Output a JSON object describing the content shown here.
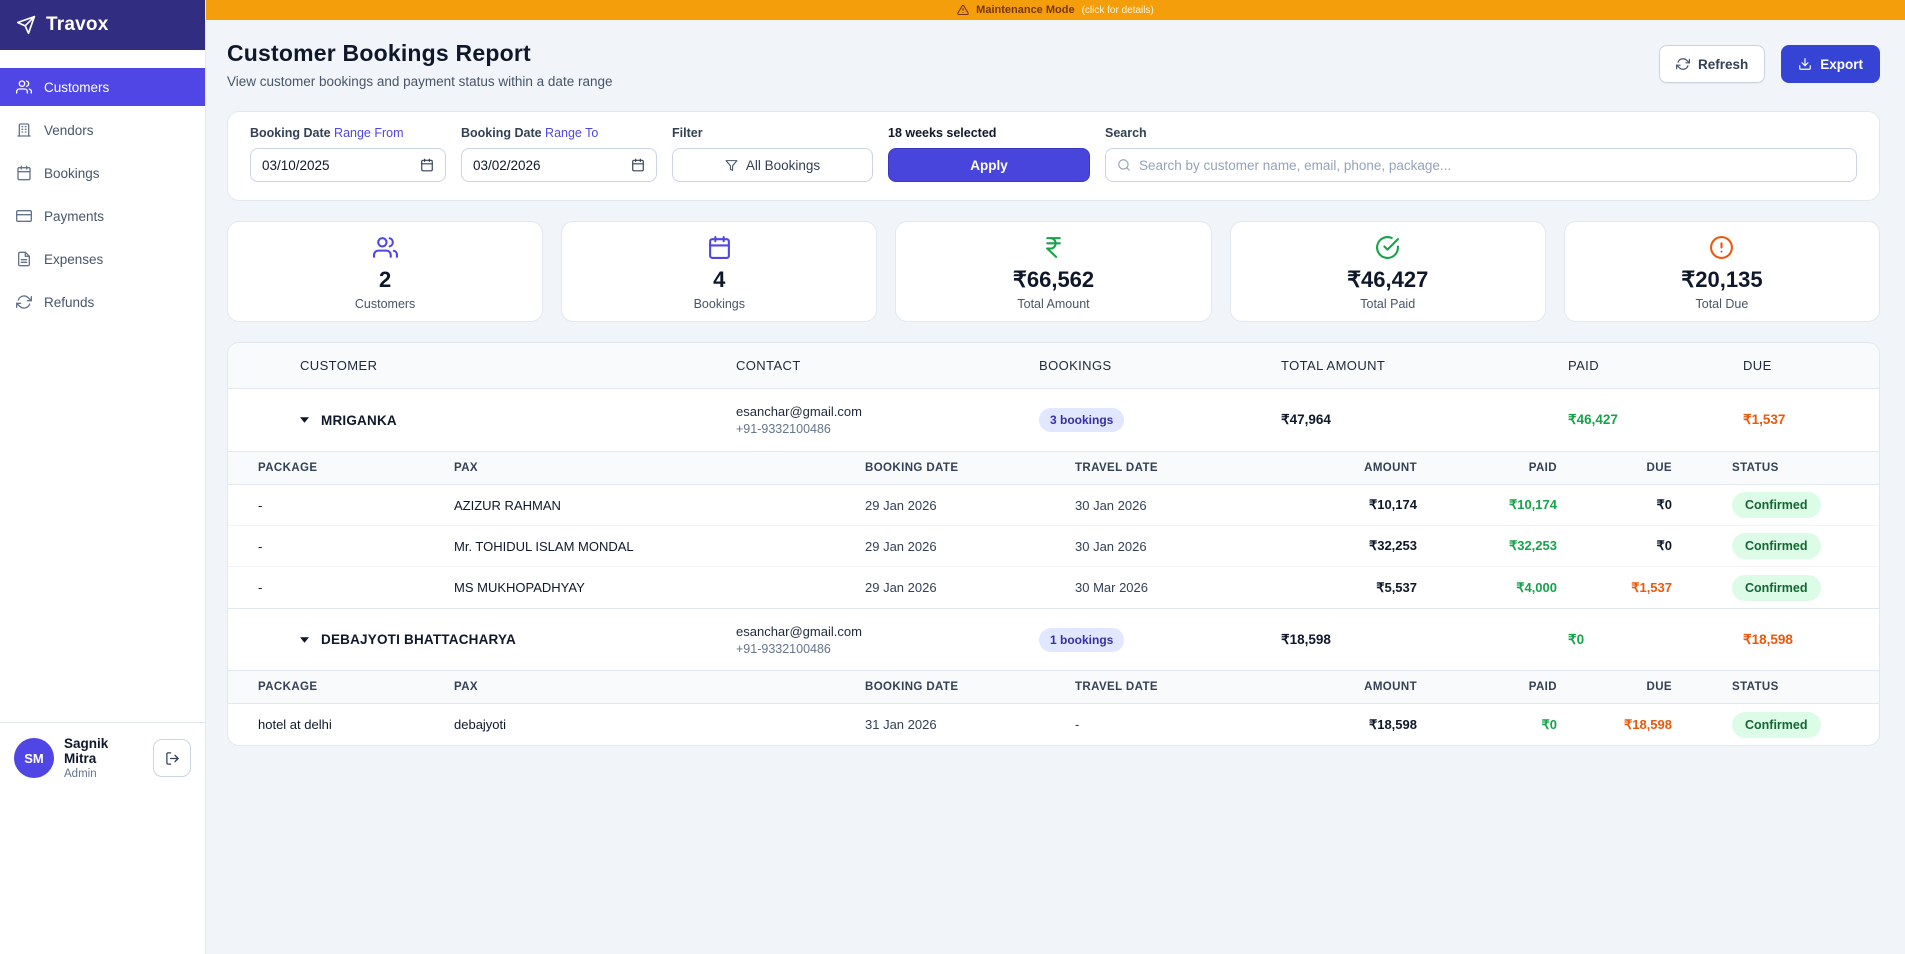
{
  "colors": {
    "primary": "#4F46E5",
    "sidebar_header": "#312E81",
    "banner": "#F59E0B",
    "apply_button": "#4845DC",
    "export_button": "#3544D4",
    "paid_green": "#16A34A",
    "due_orange": "#EA580C",
    "bookings_badge_bg": "#E0E7FF",
    "confirmed_badge_bg": "#DCFCE7",
    "confirmed_badge_text": "#166534"
  },
  "banner": {
    "message": "Maintenance Mode",
    "detail": "(click for details)"
  },
  "sidebar": {
    "brand": "Travox",
    "items": [
      {
        "label": "Customers",
        "icon": "users-icon",
        "active": true
      },
      {
        "label": "Vendors",
        "icon": "building-icon",
        "active": false
      },
      {
        "label": "Bookings",
        "icon": "calendar-icon",
        "active": false
      },
      {
        "label": "Payments",
        "icon": "credit-card-icon",
        "active": false
      },
      {
        "label": "Expenses",
        "icon": "receipt-icon",
        "active": false
      },
      {
        "label": "Refunds",
        "icon": "refresh-icon",
        "active": false
      }
    ],
    "user": {
      "initials": "SM",
      "name": "Sagnik Mitra",
      "role": "Admin"
    }
  },
  "page": {
    "title": "Customer Bookings Report",
    "subtitle": "View customer bookings and payment status within a date range",
    "refresh": "Refresh",
    "export": "Export"
  },
  "filters": {
    "from": {
      "label": "Booking Date",
      "sublabel": "Range From",
      "value": "03/10/2025"
    },
    "to": {
      "label": "Booking Date",
      "sublabel": "Range To",
      "value": "03/02/2026"
    },
    "filter": {
      "label": "Filter",
      "value": "All Bookings"
    },
    "apply": {
      "label": "18 weeks selected",
      "button": "Apply"
    },
    "search": {
      "label": "Search",
      "placeholder": "Search by customer name, email, phone, package..."
    }
  },
  "stats": [
    {
      "value": "2",
      "label": "Customers",
      "icon": "users-icon",
      "color": "#4F46E5"
    },
    {
      "value": "4",
      "label": "Bookings",
      "icon": "calendar-icon",
      "color": "#4F46E5"
    },
    {
      "value": "₹66,562",
      "label": "Total Amount",
      "icon": "rupee-icon",
      "color": "#16A34A"
    },
    {
      "value": "₹46,427",
      "label": "Total Paid",
      "icon": "check-circle-icon",
      "color": "#16A34A"
    },
    {
      "value": "₹20,135",
      "label": "Total Due",
      "icon": "alert-circle-icon",
      "color": "#EA580C"
    }
  ],
  "table": {
    "headers": [
      "CUSTOMER",
      "CONTACT",
      "BOOKINGS",
      "TOTAL AMOUNT",
      "PAID",
      "DUE"
    ],
    "sub_headers": [
      "PACKAGE",
      "PAX",
      "BOOKING DATE",
      "TRAVEL DATE",
      "AMOUNT",
      "PAID",
      "DUE",
      "STATUS"
    ],
    "customers": [
      {
        "name": "MRIGANKA",
        "email": "esanchar@gmail.com",
        "phone": "+91-9332100486",
        "bookings_badge": "3 bookings",
        "total_amount": "₹47,964",
        "paid": "₹46,427",
        "due": "₹1,537",
        "rows": [
          {
            "package": "-",
            "pax": "AZIZUR RAHMAN",
            "booking_date": "29 Jan 2026",
            "travel_date": "30 Jan 2026",
            "amount": "₹10,174",
            "paid": "₹10,174",
            "due": "₹0",
            "status": "Confirmed"
          },
          {
            "package": "-",
            "pax": "Mr. TOHIDUL ISLAM MONDAL",
            "booking_date": "29 Jan 2026",
            "travel_date": "30 Jan 2026",
            "amount": "₹32,253",
            "paid": "₹32,253",
            "due": "₹0",
            "status": "Confirmed"
          },
          {
            "package": "-",
            "pax": "MS MUKHOPADHYAY",
            "booking_date": "29 Jan 2026",
            "travel_date": "30 Mar 2026",
            "amount": "₹5,537",
            "paid": "₹4,000",
            "due": "₹1,537",
            "status": "Confirmed"
          }
        ]
      },
      {
        "name": "DEBAJYOTI BHATTACHARYA",
        "email": "esanchar@gmail.com",
        "phone": "+91-9332100486",
        "bookings_badge": "1 bookings",
        "total_amount": "₹18,598",
        "paid": "₹0",
        "due": "₹18,598",
        "rows": [
          {
            "package": "hotel at delhi",
            "pax": "debajyoti",
            "booking_date": "31 Jan 2026",
            "travel_date": "-",
            "amount": "₹18,598",
            "paid": "₹0",
            "due": "₹18,598",
            "status": "Confirmed"
          }
        ]
      }
    ]
  }
}
